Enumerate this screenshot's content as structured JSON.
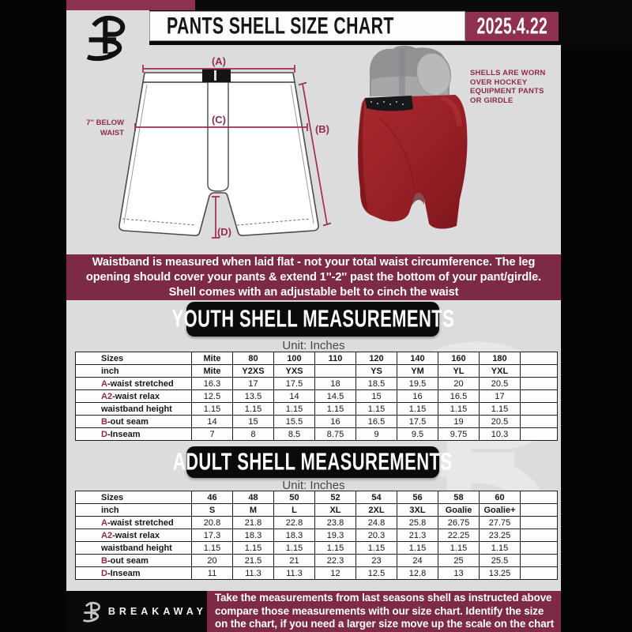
{
  "header": {
    "title": "PANTS SHELL SIZE CHART",
    "date": "2025.4.22",
    "brand_logo": "breakaway-b-logo"
  },
  "diagram": {
    "label_a": "(A)",
    "label_b": "(B)",
    "label_c": "(C)",
    "label_d": "(D)",
    "below_waist_line1": "7'' BELOW",
    "below_waist_line2": "WAIST"
  },
  "photo": {
    "caption": "SHELLS ARE WORN\nOVER HOCKEY\nEQUIPMENT PANTS\nOR GIRDLE"
  },
  "notice": {
    "text": "Waistband is measured when laid flat - not your total waist circumference. The leg\nopening should cover your pants & extend 1''-2'' past the bottom of your pant/girdle.\nShell comes with an adjustable belt to cinch the waist"
  },
  "sections": [
    {
      "title": "YOUTH SHELL MEASUREMENTS",
      "unit": "Unit: Inches",
      "table": {
        "col0_header": "Sizes",
        "col0_subheader": "inch",
        "sizes": [
          "Mite",
          "80",
          "100",
          "110",
          "120",
          "140",
          "160",
          "180"
        ],
        "size_names": [
          "Mite",
          "Y2XS",
          "YXS",
          "",
          "YS",
          "YM",
          "YL",
          "YXL"
        ],
        "rows": [
          {
            "prefix": "A",
            "label": "-waist stretched",
            "values": [
              "16.3",
              "17",
              "17.5",
              "18",
              "18.5",
              "19.5",
              "20",
              "20.5"
            ]
          },
          {
            "prefix": "A2",
            "label": "-waist relax",
            "values": [
              "12.5",
              "13.5",
              "14",
              "14.5",
              "15",
              "16",
              "16.5",
              "17"
            ]
          },
          {
            "prefix": "",
            "label": "waistband height",
            "values": [
              "1.15",
              "1.15",
              "1.15",
              "1.15",
              "1.15",
              "1.15",
              "1.15",
              "1.15"
            ]
          },
          {
            "prefix": "B",
            "label": "-out seam",
            "values": [
              "14",
              "15",
              "15.5",
              "16",
              "16.5",
              "17.5",
              "19",
              "20.5"
            ]
          },
          {
            "prefix": "D",
            "label": "-Inseam",
            "values": [
              "7",
              "8",
              "8.5",
              "8.75",
              "9",
              "9.5",
              "9.75",
              "10.3"
            ]
          }
        ]
      }
    },
    {
      "title": "ADULT SHELL MEASUREMENTS",
      "unit": "Unit: Inches",
      "table": {
        "col0_header": "Sizes",
        "col0_subheader": "inch",
        "sizes": [
          "46",
          "48",
          "50",
          "52",
          "54",
          "56",
          "58",
          "60"
        ],
        "size_names": [
          "S",
          "M",
          "L",
          "XL",
          "2XL",
          "3XL",
          "Goalie",
          "Goalie+"
        ],
        "rows": [
          {
            "prefix": "A",
            "label": "-waist stretched",
            "values": [
              "20.8",
              "21.8",
              "22.8",
              "23.8",
              "24.8",
              "25.8",
              "26.75",
              "27.75"
            ]
          },
          {
            "prefix": "A2",
            "label": "-waist relax",
            "values": [
              "17.3",
              "18.3",
              "18.3",
              "19.3",
              "20.3",
              "21.3",
              "22.25",
              "23.25"
            ]
          },
          {
            "prefix": "",
            "label": "waistband height",
            "values": [
              "1.15",
              "1.15",
              "1.15",
              "1.15",
              "1.15",
              "1.15",
              "1.15",
              "1.15"
            ]
          },
          {
            "prefix": "B",
            "label": "-out seam",
            "values": [
              "20",
              "21.5",
              "21",
              "22.3",
              "23",
              "24",
              "25",
              "25.5"
            ]
          },
          {
            "prefix": "D",
            "label": "-Inseam",
            "values": [
              "11",
              "11.3",
              "11.3",
              "12",
              "12.5",
              "12.8",
              "13",
              "13.25"
            ]
          }
        ]
      }
    }
  ],
  "footer": {
    "brand": "BREAKAWAY",
    "text": "Take the measurements from last seasons shell as instructed above\ncompare those measurements  with our size chart. Identify the size\non the chart, if you need a larger size move up the scale on the chart"
  },
  "colors": {
    "maroon_dark": "#7d2a45",
    "maroon_bright": "#8e3050",
    "arrow_maroon": "#a02c4e",
    "banner_black": "#0b0b0b",
    "sheet_gray": "#dcdcdf",
    "watermark_gray": "#e8e8eb",
    "shell_red": "#9e2227"
  }
}
